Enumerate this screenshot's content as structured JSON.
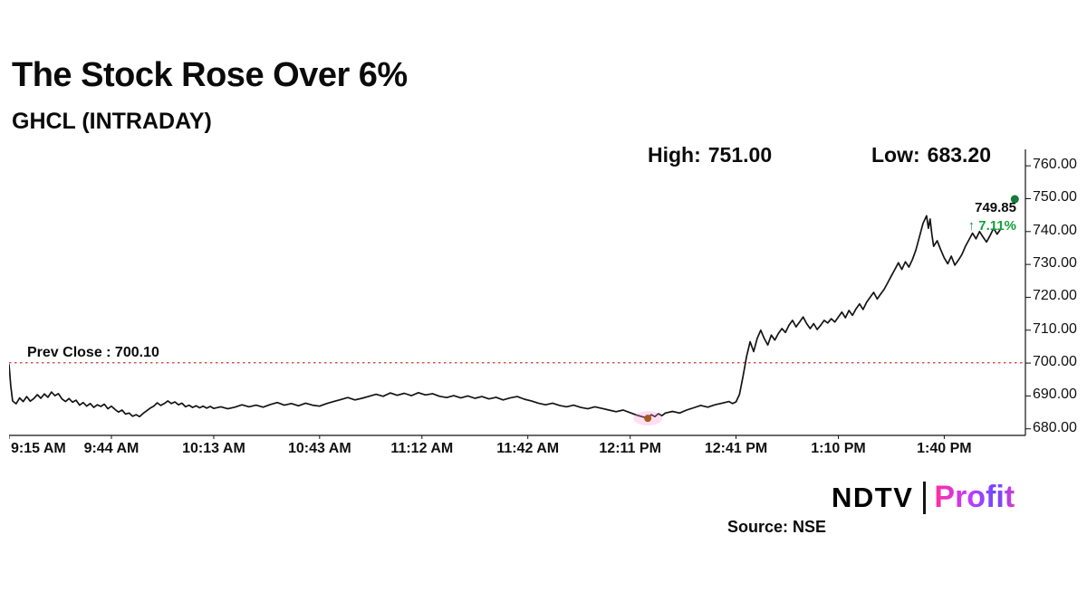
{
  "header": {
    "title": "The Stock Rose Over 6%",
    "subtitle": "GHCL (INTRADAY)"
  },
  "stats": {
    "high_label": "High:",
    "high_value": "751.00",
    "low_label": "Low:",
    "low_value": "683.20"
  },
  "annotation": {
    "last_price": "749.85",
    "change": "↑ 7.11%"
  },
  "prev_close_label": "Prev Close : 700.10",
  "footer": {
    "brand_ndtv": "NDTV",
    "brand_profit": "Profit",
    "source": "Source: NSE"
  },
  "chart_data": {
    "type": "line",
    "title": "GHCL (INTRADAY)",
    "symbol": "GHCL",
    "session": "INTRADAY",
    "high": 751.0,
    "low": 683.2,
    "prev_close": 700.1,
    "last_price": 749.85,
    "change_pct": 7.11,
    "grid": false,
    "legend": "none",
    "x_tick_labels": [
      "9:15 AM",
      "9:44 AM",
      "10:13 AM",
      "10:43 AM",
      "11:12 AM",
      "11:42 AM",
      "12:11 PM",
      "12:41 PM",
      "1:10 PM",
      "1:40 PM"
    ],
    "x_tick_minutes": [
      0,
      29,
      58,
      88,
      117,
      147,
      176,
      206,
      235,
      265
    ],
    "x_domain_minutes": [
      0,
      288
    ],
    "y_ticks": [
      680,
      690,
      700,
      710,
      720,
      730,
      740,
      750,
      760
    ],
    "ylim": [
      678,
      765
    ],
    "line_color": "#141414",
    "prev_close_color": "#c63a2e",
    "last_dot_color": "#157a3a",
    "low_dot_color": "#a55a1e",
    "up_color": "#13a03c",
    "low_marker": {
      "minute": 181,
      "price": 683.2
    },
    "last_marker": {
      "minute": 285,
      "price": 749.85
    },
    "series": [
      {
        "name": "GHCL intraday price",
        "points": [
          [
            0,
            699.5
          ],
          [
            0.5,
            693
          ],
          [
            1,
            688.5
          ],
          [
            2,
            687.6
          ],
          [
            3,
            689.4
          ],
          [
            4,
            688.3
          ],
          [
            5,
            689.8
          ],
          [
            6,
            688.4
          ],
          [
            7,
            689.2
          ],
          [
            8,
            690.4
          ],
          [
            9,
            689.3
          ],
          [
            10,
            690.6
          ],
          [
            11,
            689.6
          ],
          [
            12,
            691.2
          ],
          [
            13,
            690.1
          ],
          [
            14,
            690.7
          ],
          [
            15,
            689.1
          ],
          [
            16,
            688.3
          ],
          [
            17,
            689.2
          ],
          [
            18,
            688.1
          ],
          [
            19,
            688.7
          ],
          [
            20,
            687.2
          ],
          [
            21,
            688.0
          ],
          [
            22,
            686.9
          ],
          [
            23,
            687.7
          ],
          [
            24,
            686.5
          ],
          [
            25,
            687.3
          ],
          [
            26,
            686.8
          ],
          [
            27,
            687.5
          ],
          [
            28,
            686.1
          ],
          [
            29,
            686.9
          ],
          [
            30,
            685.9
          ],
          [
            31,
            685.1
          ],
          [
            32,
            685.7
          ],
          [
            33,
            684.5
          ],
          [
            34,
            684.8
          ],
          [
            35,
            683.8
          ],
          [
            36,
            684.3
          ],
          [
            37,
            683.7
          ],
          [
            38,
            684.7
          ],
          [
            39,
            685.5
          ],
          [
            40,
            686.3
          ],
          [
            41,
            686.9
          ],
          [
            42,
            687.9
          ],
          [
            43,
            687.1
          ],
          [
            44,
            687.7
          ],
          [
            45,
            688.5
          ],
          [
            46,
            687.7
          ],
          [
            47,
            688.2
          ],
          [
            48,
            687.3
          ],
          [
            49,
            687.8
          ],
          [
            50,
            686.7
          ],
          [
            51,
            687.2
          ],
          [
            52,
            686.5
          ],
          [
            53,
            687.0
          ],
          [
            54,
            686.4
          ],
          [
            55,
            686.9
          ],
          [
            56,
            686.3
          ],
          [
            57,
            686.8
          ],
          [
            58,
            686.2
          ],
          [
            60,
            686.7
          ],
          [
            62,
            686.1
          ],
          [
            64,
            686.6
          ],
          [
            66,
            687.3
          ],
          [
            68,
            686.7
          ],
          [
            70,
            687.2
          ],
          [
            72,
            686.6
          ],
          [
            74,
            687.4
          ],
          [
            76,
            688.0
          ],
          [
            78,
            687.2
          ],
          [
            80,
            687.7
          ],
          [
            82,
            687.0
          ],
          [
            84,
            687.8
          ],
          [
            86,
            687.2
          ],
          [
            88,
            686.9
          ],
          [
            90,
            687.7
          ],
          [
            92,
            688.3
          ],
          [
            94,
            688.9
          ],
          [
            96,
            689.5
          ],
          [
            98,
            688.8
          ],
          [
            100,
            689.3
          ],
          [
            102,
            689.9
          ],
          [
            104,
            690.5
          ],
          [
            106,
            689.9
          ],
          [
            108,
            690.9
          ],
          [
            110,
            690.2
          ],
          [
            112,
            690.8
          ],
          [
            114,
            690.1
          ],
          [
            116,
            691.0
          ],
          [
            118,
            690.3
          ],
          [
            120,
            690.7
          ],
          [
            122,
            689.9
          ],
          [
            124,
            689.5
          ],
          [
            126,
            690.1
          ],
          [
            128,
            689.4
          ],
          [
            130,
            690.0
          ],
          [
            132,
            689.3
          ],
          [
            134,
            689.8
          ],
          [
            136,
            689.1
          ],
          [
            138,
            689.6
          ],
          [
            140,
            688.8
          ],
          [
            142,
            689.4
          ],
          [
            144,
            689.8
          ],
          [
            146,
            689.0
          ],
          [
            148,
            688.5
          ],
          [
            150,
            687.8
          ],
          [
            152,
            687.3
          ],
          [
            154,
            687.8
          ],
          [
            156,
            687.1
          ],
          [
            158,
            686.7
          ],
          [
            160,
            687.2
          ],
          [
            162,
            686.5
          ],
          [
            164,
            686.1
          ],
          [
            166,
            686.7
          ],
          [
            168,
            686.2
          ],
          [
            170,
            685.7
          ],
          [
            172,
            685.2
          ],
          [
            174,
            685.7
          ],
          [
            176,
            684.9
          ],
          [
            178,
            684.1
          ],
          [
            180,
            683.5
          ],
          [
            181,
            683.2
          ],
          [
            182,
            684.3
          ],
          [
            183,
            683.7
          ],
          [
            184,
            684.6
          ],
          [
            185,
            684.0
          ],
          [
            186,
            684.8
          ],
          [
            188,
            685.3
          ],
          [
            190,
            684.8
          ],
          [
            192,
            685.7
          ],
          [
            194,
            686.4
          ],
          [
            196,
            687.1
          ],
          [
            198,
            686.6
          ],
          [
            200,
            687.3
          ],
          [
            202,
            687.8
          ],
          [
            204,
            688.3
          ],
          [
            205,
            687.7
          ],
          [
            206,
            688.2
          ],
          [
            207,
            690.5
          ],
          [
            208,
            696.0
          ],
          [
            209,
            702.0
          ],
          [
            210,
            706.5
          ],
          [
            211,
            703.5
          ],
          [
            212,
            707.5
          ],
          [
            213,
            710.0
          ],
          [
            214,
            707.5
          ],
          [
            215,
            705.5
          ],
          [
            216,
            708.5
          ],
          [
            217,
            707.0
          ],
          [
            218,
            709.0
          ],
          [
            219,
            710.5
          ],
          [
            220,
            709.3
          ],
          [
            221,
            711.5
          ],
          [
            222,
            713.0
          ],
          [
            223,
            711.0
          ],
          [
            224,
            712.5
          ],
          [
            225,
            714.0
          ],
          [
            226,
            712.0
          ],
          [
            227,
            710.5
          ],
          [
            228,
            712.0
          ],
          [
            229,
            710.2
          ],
          [
            230,
            711.5
          ],
          [
            231,
            713.0
          ],
          [
            232,
            712.2
          ],
          [
            233,
            713.5
          ],
          [
            234,
            712.5
          ],
          [
            235,
            714.0
          ],
          [
            236,
            715.5
          ],
          [
            237,
            713.8
          ],
          [
            238,
            716.0
          ],
          [
            239,
            714.5
          ],
          [
            240,
            716.5
          ],
          [
            241,
            718.0
          ],
          [
            242,
            716.3
          ],
          [
            243,
            718.5
          ],
          [
            244,
            720.0
          ],
          [
            245,
            721.5
          ],
          [
            246,
            719.5
          ],
          [
            247,
            721.0
          ],
          [
            248,
            722.5
          ],
          [
            249,
            724.5
          ],
          [
            250,
            726.5
          ],
          [
            251,
            728.5
          ],
          [
            252,
            730.5
          ],
          [
            253,
            728.5
          ],
          [
            254,
            730.8
          ],
          [
            255,
            729.2
          ],
          [
            256,
            731.5
          ],
          [
            257,
            734.5
          ],
          [
            258,
            738.5
          ],
          [
            259,
            742.5
          ],
          [
            260,
            744.8
          ],
          [
            260.5,
            741.0
          ],
          [
            261,
            743.8
          ],
          [
            261.5,
            739.0
          ],
          [
            262,
            735.5
          ],
          [
            263,
            737.2
          ],
          [
            264,
            734.5
          ],
          [
            265,
            732.0
          ],
          [
            266,
            730.2
          ],
          [
            267,
            732.5
          ],
          [
            268,
            729.8
          ],
          [
            269,
            731.3
          ],
          [
            270,
            733.0
          ],
          [
            271,
            735.5
          ],
          [
            272,
            737.5
          ],
          [
            273,
            739.5
          ],
          [
            274,
            737.8
          ],
          [
            275,
            740.0
          ],
          [
            276,
            738.3
          ],
          [
            277,
            736.8
          ],
          [
            278,
            738.8
          ],
          [
            279,
            741.0
          ],
          [
            280,
            739.2
          ],
          [
            281,
            740.8
          ]
        ]
      }
    ]
  }
}
